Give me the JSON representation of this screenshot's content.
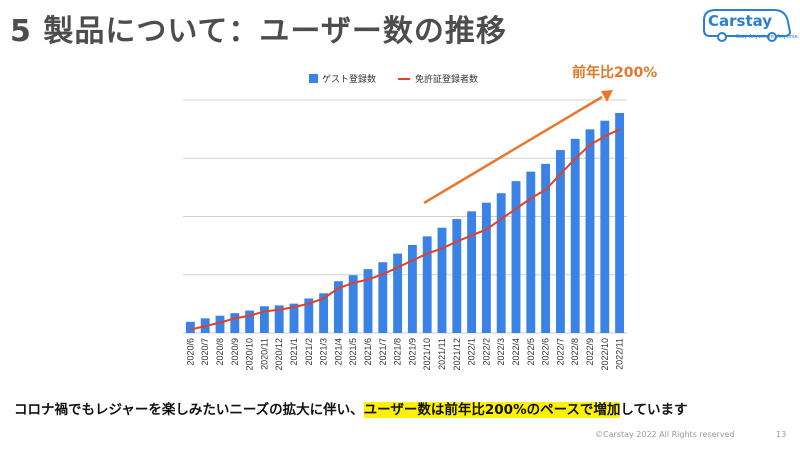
{
  "slide": {
    "title": "5 製品について：ユーザー数の推移",
    "growth_label": "前年比200%",
    "bottom_text_prefix": "コロナ禍でもレジャーを楽しみたいニーズの拡大に伴い、",
    "bottom_text_highlight": "ユーザー数は前年比200%のペースで増加",
    "bottom_text_suffix": "しています",
    "copyright": "©Carstay 2022 All Rights reserved",
    "page_number": "13"
  },
  "logo": {
    "word": "Carstay",
    "tagline": "Stay Anywhere, Anytime."
  },
  "colors": {
    "bar": "#3b82e6",
    "line": "#e0412a",
    "arrow": "#e8782c",
    "highlight": "#fff200",
    "title": "#4d4d4d"
  },
  "chart_data": {
    "type": "bar",
    "categories": [
      "2020/6",
      "2020/7",
      "2020/8",
      "2020/9",
      "2020/10",
      "2020/11",
      "2020/12",
      "2021/1",
      "2021/2",
      "2021/3",
      "2021/4",
      "2021/5",
      "2021/6",
      "2021/7",
      "2021/8",
      "2021/9",
      "2021/10",
      "2021/11",
      "2021/12",
      "2022/1",
      "2022/2",
      "2022/3",
      "2022/4",
      "2022/5",
      "2022/6",
      "2022/7",
      "2022/8",
      "2022/9",
      "2022/10",
      "2022/11"
    ],
    "series": [
      {
        "name": "ゲスト登録数",
        "kind": "bar",
        "values": [
          6.5,
          8.5,
          10,
          11.5,
          13,
          15.5,
          16,
          17,
          20,
          23,
          30,
          33.5,
          37,
          41,
          46,
          51,
          56,
          61,
          66,
          70.5,
          75.5,
          81,
          88,
          93.5,
          98,
          106,
          112.5,
          118,
          123,
          127.5
        ]
      },
      {
        "name": "免許証登録者数",
        "kind": "line",
        "values": [
          2,
          4,
          6,
          8.5,
          10,
          12.5,
          13.5,
          15,
          17,
          20,
          26,
          29,
          31,
          34,
          38,
          42,
          46,
          49,
          53,
          56.5,
          60,
          66,
          72,
          78,
          83,
          92,
          101,
          109,
          114,
          118
        ]
      }
    ],
    "ylim": [
      0,
      135
    ],
    "gridlines": [
      0,
      33.75,
      67.5,
      101.25,
      135
    ],
    "y_tick_labels_shown": false,
    "legend_position": "top",
    "annotation": {
      "text": "前年比200%",
      "from_category": "2021/10",
      "to_category": "2022/11"
    }
  }
}
